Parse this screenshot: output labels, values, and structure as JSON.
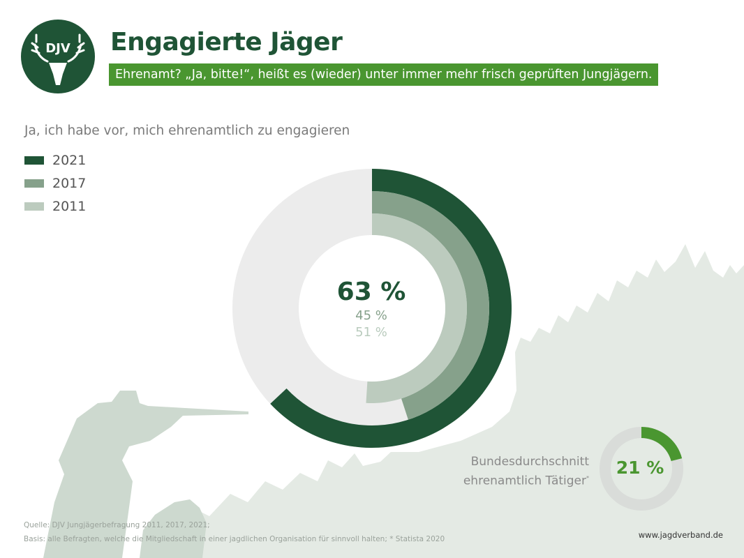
{
  "header": {
    "logo_text": "DJV",
    "title": "Engagierte Jäger",
    "subtitle": "Ehrenamt? „Ja, bitte!“, heißt es (wieder) unter immer mehr frisch geprüften Jungjägern."
  },
  "chart_data": [
    {
      "type": "donut",
      "title": "Ja, ich habe vor, mich ehrenamtlich zu engagieren",
      "series": [
        {
          "name": "2021",
          "value": 63,
          "label": "63 %",
          "color": "#1f5436"
        },
        {
          "name": "2017",
          "value": 45,
          "label": "45 %",
          "color": "#86a18b"
        },
        {
          "name": "2011",
          "value": 51,
          "label": "51 %",
          "color": "#bccbbe"
        }
      ],
      "remainder_color": "#ececec",
      "max": 100,
      "legend_position": "top-left"
    },
    {
      "type": "donut",
      "title_lines": [
        "Bundesdurchschnitt",
        "ehrenamtlich Tätiger"
      ],
      "title_footnote": "*",
      "value": 21,
      "label": "21 %",
      "color": "#4a9630",
      "remainder_color": "#d9dcd9"
    }
  ],
  "footer": {
    "source": "Quelle: DJV Jungjägerbefragung 2011, 2017, 2021;",
    "basis": "Basis: alle Befragten, welche die Mitgliedschaft in einer jagdlichen Organisation für sinnvoll halten; * Statista 2020",
    "website": "www.jagdverband.de"
  }
}
